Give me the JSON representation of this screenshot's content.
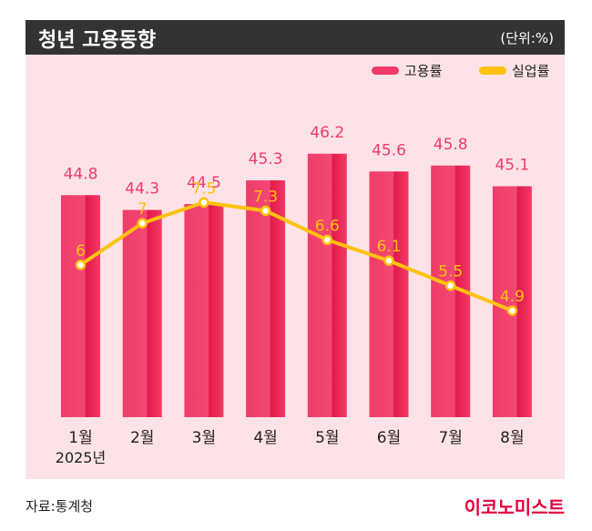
{
  "header": {
    "title": "청년 고용동향",
    "unit": "(단위:%)"
  },
  "legend": [
    {
      "label": "고용률",
      "color": "#f23a6a"
    },
    {
      "label": "실업률",
      "color": "#ffc20e"
    }
  ],
  "footer": {
    "source": "자료:통계청",
    "brand": "이코노미스트"
  },
  "chart_data": {
    "type": "bar",
    "categories": [
      "1월",
      "2월",
      "3월",
      "4월",
      "5월",
      "6월",
      "7월",
      "8월"
    ],
    "year_label": "2025년",
    "series": [
      {
        "name": "고용률",
        "type": "bar",
        "values": [
          44.8,
          44.3,
          44.5,
          45.3,
          46.2,
          45.6,
          45.8,
          45.1
        ],
        "color": "#f23a6a"
      },
      {
        "name": "실업률",
        "type": "line",
        "values": [
          6,
          7,
          7.5,
          7.3,
          6.6,
          6.1,
          5.5,
          4.9
        ],
        "color": "#ffc20e"
      }
    ],
    "bar_label_color": "#f23a6a",
    "line_label_color": "#ffc20e",
    "grid": false,
    "legend_position": "top-right"
  }
}
